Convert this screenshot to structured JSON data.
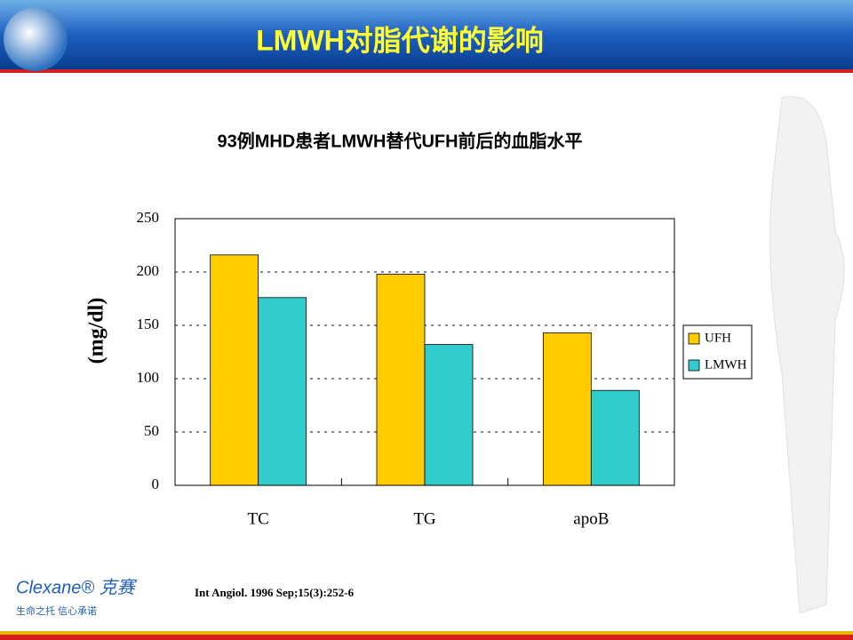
{
  "header_title": "LMWH对脂代谢的影响",
  "chart_data": {
    "type": "bar",
    "title": "93例MHD患者LMWH替代UFH前后的血脂水平",
    "y_label": "(mg/dl)",
    "categories": [
      "TC",
      "TG",
      "apoB"
    ],
    "series": [
      {
        "name": "UFH",
        "color": "#ffcc00",
        "values": [
          216,
          198,
          143
        ]
      },
      {
        "name": "LMWH",
        "color": "#33cccc",
        "values": [
          176,
          132,
          89
        ]
      }
    ],
    "ylim": [
      0,
      250
    ],
    "yticks": [
      0,
      50,
      100,
      150,
      200,
      250
    ],
    "grid": true,
    "legend": "right"
  },
  "footnote": "Int Angiol. 1996 Sep;15(3):252-6",
  "logo": {
    "brand": "Clexane® 克赛",
    "tagline": "生命之托  信心承诺"
  }
}
